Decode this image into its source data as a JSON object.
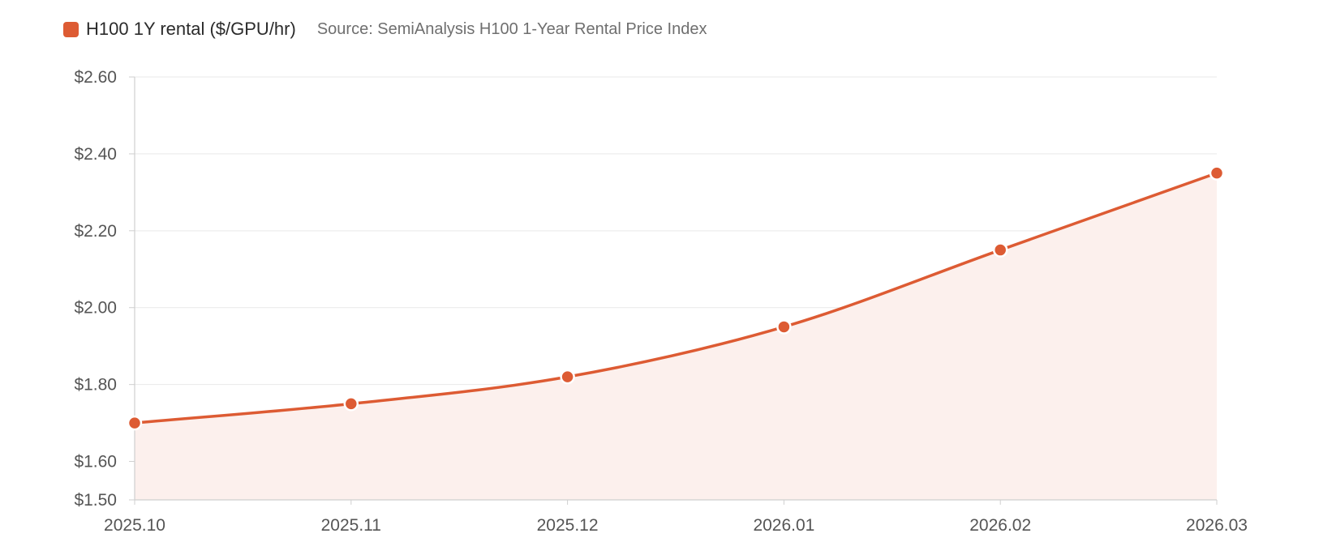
{
  "legend": {
    "series_label": "H100 1Y rental ($/GPU/hr)",
    "source": "Source: SemiAnalysis H100 1-Year Rental Price Index",
    "series_color": "#dd5b33"
  },
  "colors": {
    "line": "#dd5b33",
    "area": "#fcf0ed",
    "grid": "#e9e9e9",
    "axis": "#cfcfcf",
    "tick_text": "#555555"
  },
  "chart_data": {
    "type": "line",
    "title": "",
    "xlabel": "",
    "ylabel": "",
    "categories": [
      "2025.10",
      "2025.11",
      "2025.12",
      "2026.01",
      "2026.02",
      "2026.03"
    ],
    "series": [
      {
        "name": "H100 1Y rental ($/GPU/hr)",
        "values": [
          1.7,
          1.75,
          1.82,
          1.95,
          2.15,
          2.35
        ],
        "fill": "area",
        "smooth": true
      }
    ],
    "ylim": [
      1.5,
      2.6
    ],
    "yticks": [
      1.5,
      1.6,
      1.8,
      2.0,
      2.2,
      2.4,
      2.6
    ],
    "ytick_labels": [
      "$1.50",
      "$1.60",
      "$1.80",
      "$2.00",
      "$2.20",
      "$2.40",
      "$2.60"
    ],
    "grid": true,
    "legend_position": "top-left"
  }
}
